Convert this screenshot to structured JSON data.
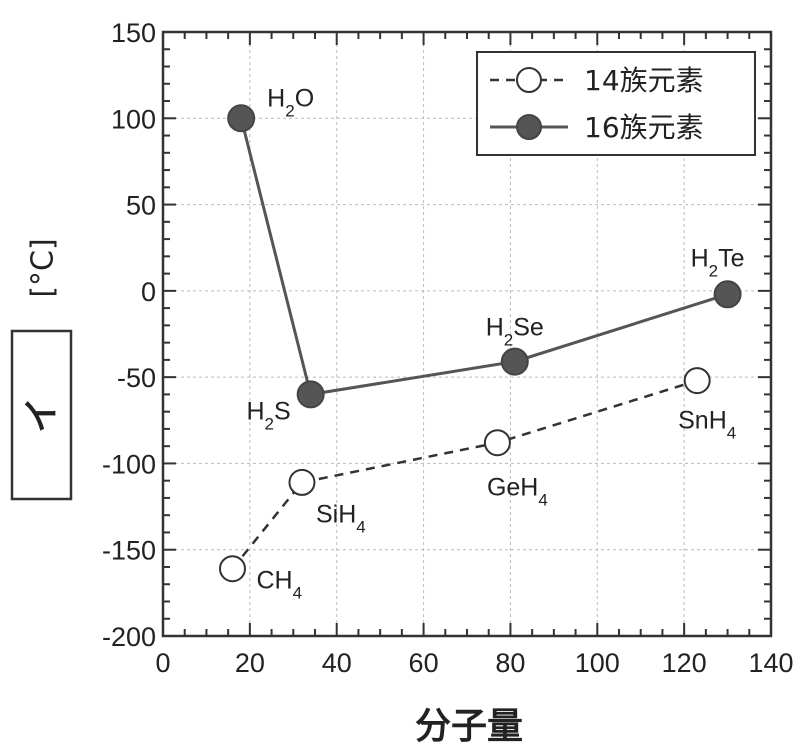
{
  "chart_data": {
    "type": "line",
    "xlabel": "分子量",
    "ylabel": "イ",
    "ylabel_unit": "[°C]",
    "xlim": [
      0,
      140
    ],
    "ylim": [
      -200,
      150
    ],
    "xticks": [
      0,
      20,
      40,
      60,
      80,
      100,
      120,
      140
    ],
    "yticks": [
      -200,
      -150,
      -100,
      -50,
      0,
      50,
      100,
      150
    ],
    "grid": true,
    "legend_position": "top-right",
    "series": [
      {
        "name": "14族元素",
        "style": "dashed",
        "marker": "open-circle",
        "points": [
          {
            "compound": "CH4",
            "x": 16,
            "y": -161
          },
          {
            "compound": "SiH4",
            "x": 32,
            "y": -111
          },
          {
            "compound": "GeH4",
            "x": 77,
            "y": -88
          },
          {
            "compound": "SnH4",
            "x": 123,
            "y": -52
          }
        ]
      },
      {
        "name": "16族元素",
        "style": "solid",
        "marker": "filled-circle",
        "points": [
          {
            "compound": "H2O",
            "x": 18,
            "y": 100
          },
          {
            "compound": "H2S",
            "x": 34,
            "y": -60
          },
          {
            "compound": "H2Se",
            "x": 81,
            "y": -41
          },
          {
            "compound": "H2Te",
            "x": 130,
            "y": -2
          }
        ]
      }
    ]
  }
}
